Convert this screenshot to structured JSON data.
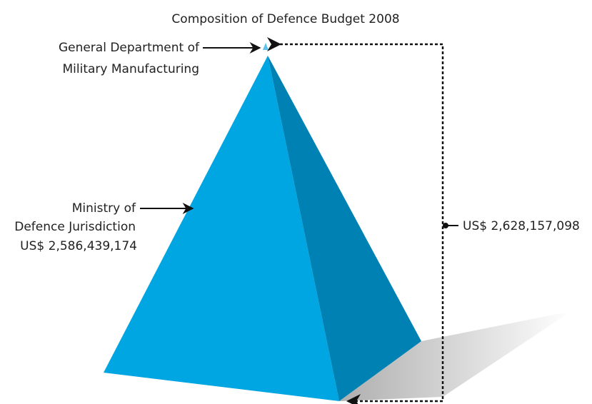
{
  "title": "Composition of Defence Budget 2008",
  "labels": [
    {
      "lines": [
        "General Department of",
        "Military Manufacturing"
      ]
    },
    {
      "lines": [
        "Ministry of",
        "Defence Jurisdiction"
      ],
      "value": "US$ 2,586,439,174"
    }
  ],
  "total": {
    "value": "US$ 2,628,157,098"
  }
}
